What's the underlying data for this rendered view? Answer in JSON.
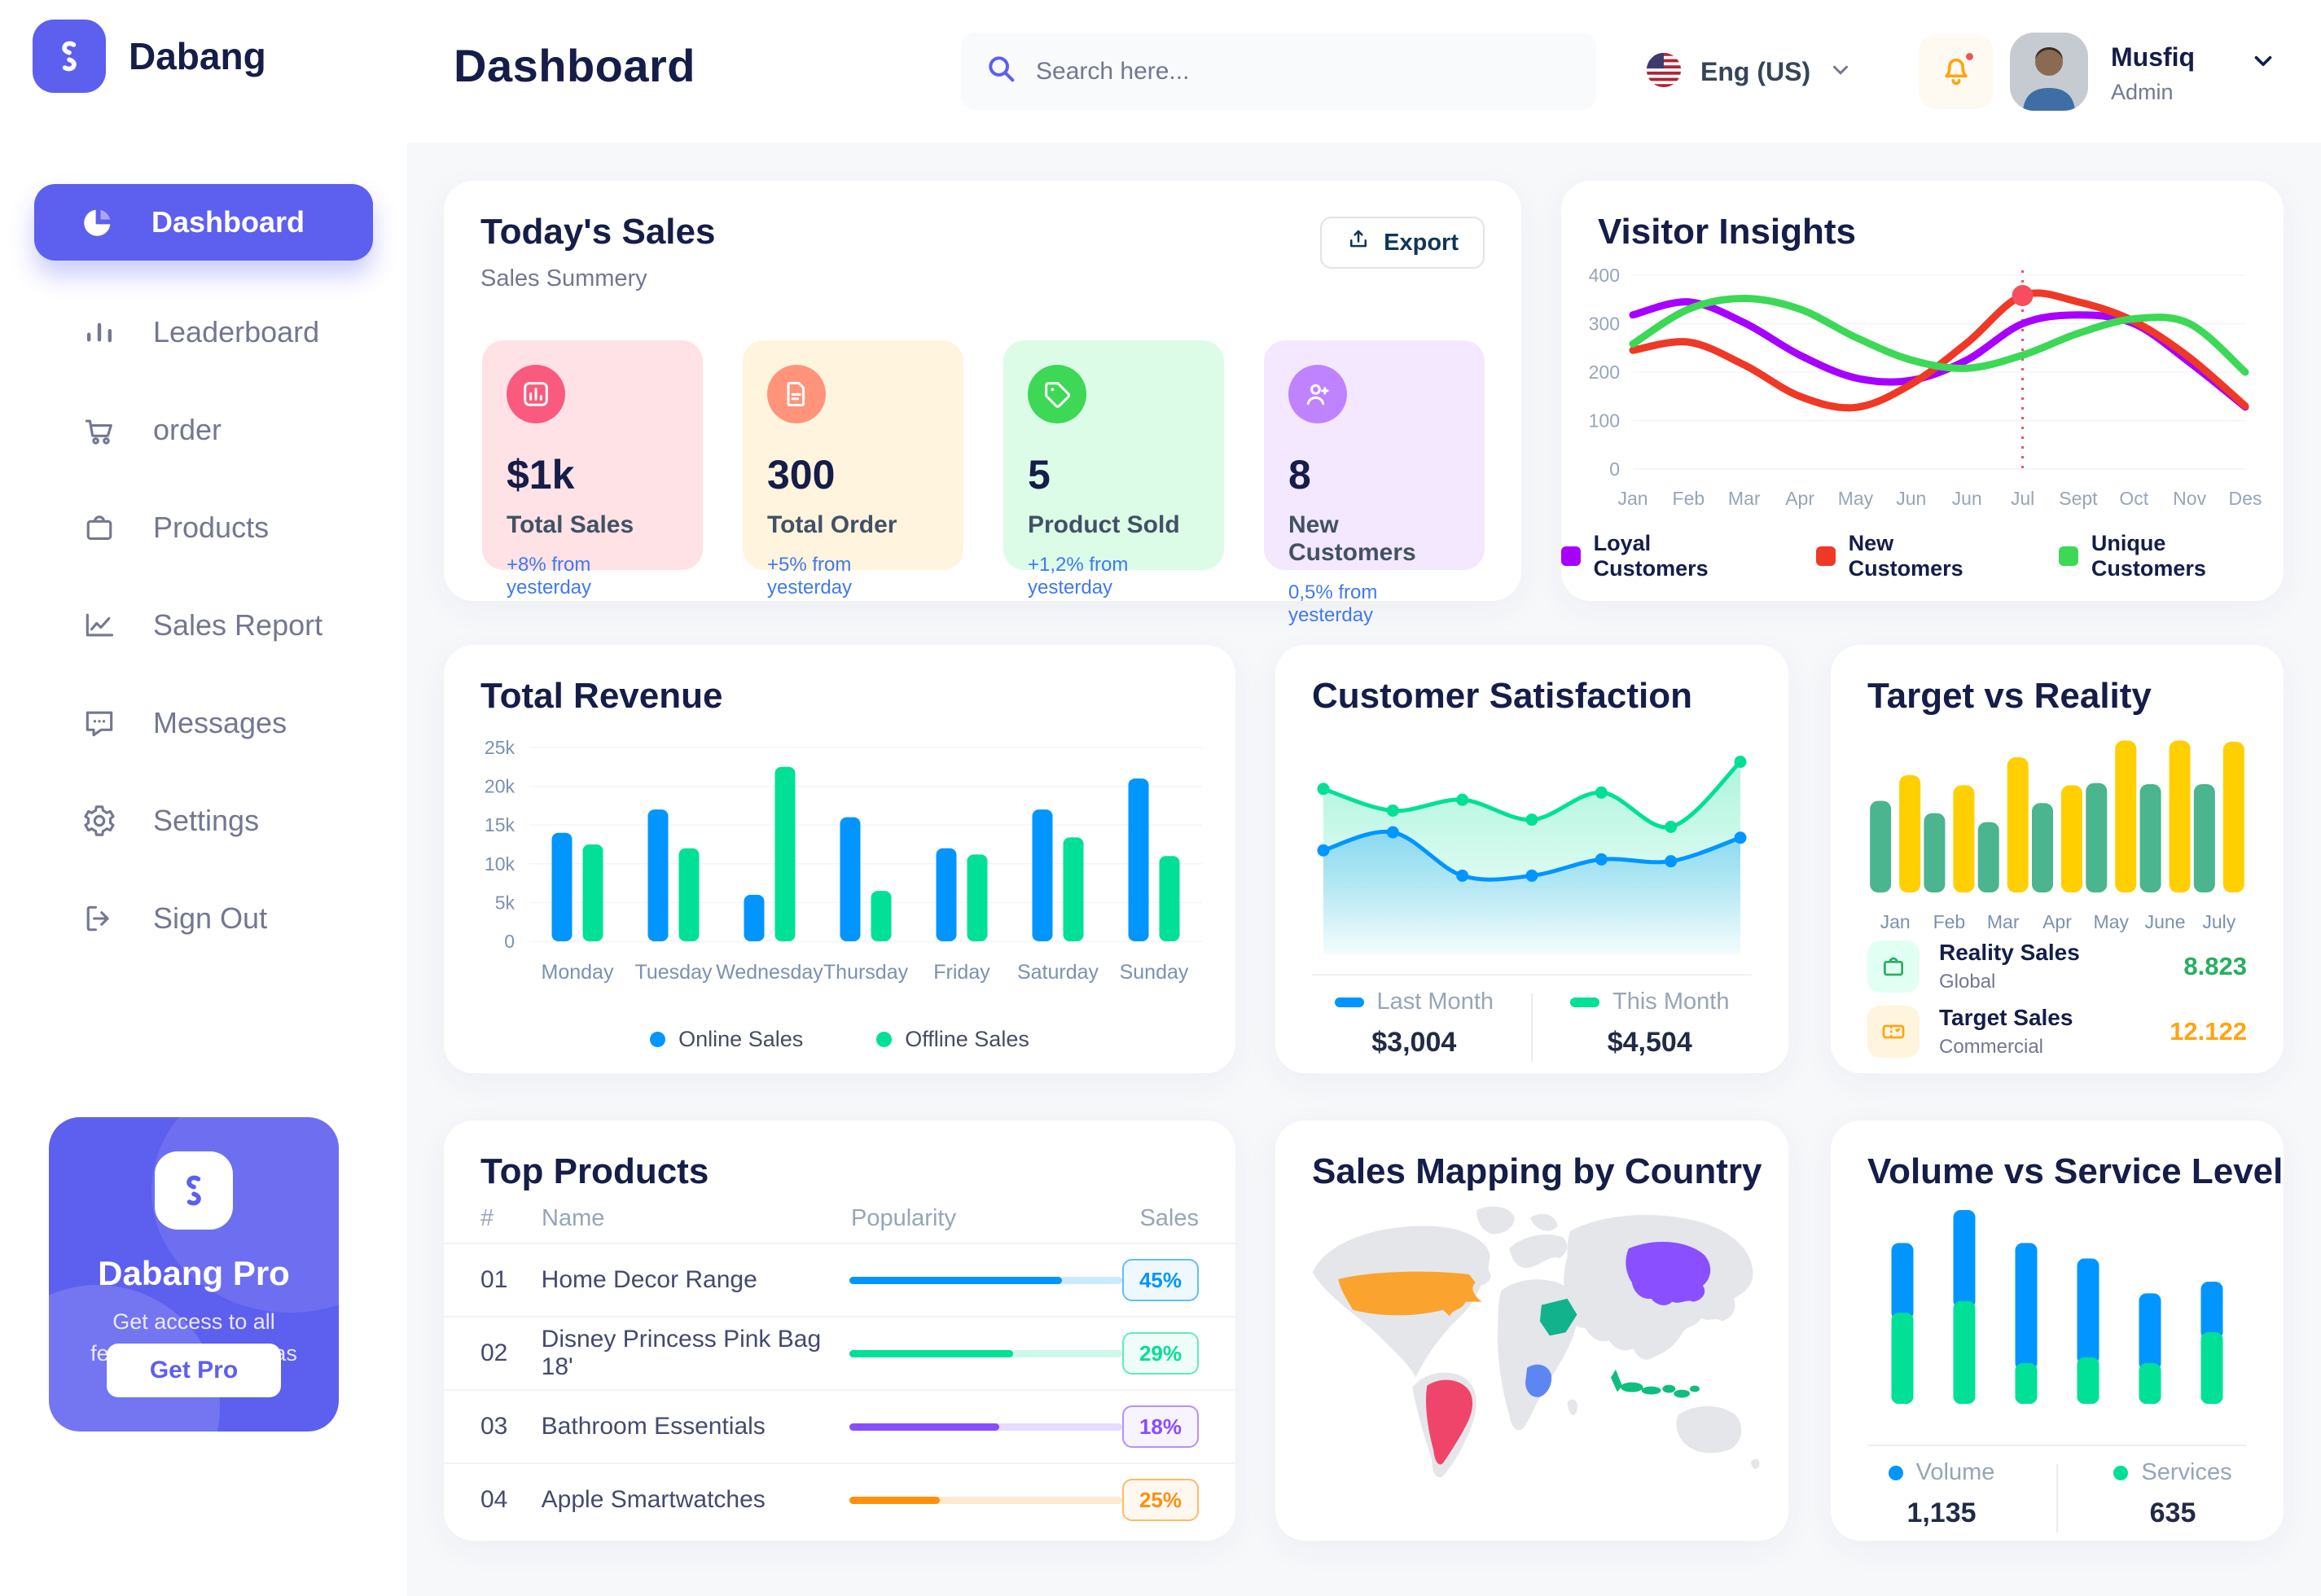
{
  "app": {
    "brand": "Dabang",
    "page_title": "Dashboard"
  },
  "header": {
    "search_placeholder": "Search here...",
    "language": "Eng (US)",
    "user": {
      "name": "Musfiq",
      "role": "Admin"
    }
  },
  "sidebar": {
    "items": [
      {
        "label": "Dashboard",
        "icon": "dashboard",
        "active": true
      },
      {
        "label": "Leaderboard",
        "icon": "leaderboard",
        "active": false
      },
      {
        "label": "order",
        "icon": "cart",
        "active": false
      },
      {
        "label": "Products",
        "icon": "bag",
        "active": false
      },
      {
        "label": "Sales Report",
        "icon": "sales",
        "active": false
      },
      {
        "label": "Messages",
        "icon": "messages",
        "active": false
      },
      {
        "label": "Settings",
        "icon": "settings",
        "active": false
      },
      {
        "label": "Sign Out",
        "icon": "signout",
        "active": false
      }
    ],
    "pro_card": {
      "title": "Dabang Pro",
      "subtitle": "Get access to all features on tetumbas",
      "button": "Get Pro"
    }
  },
  "todays_sales": {
    "title": "Today's Sales",
    "subtitle": "Sales Summery",
    "export_label": "Export",
    "stats": [
      {
        "value": "$1k",
        "label": "Total Sales",
        "change": "+8% from yesterday",
        "bg": "#FFE2E5",
        "circle": "#FA5A7D",
        "icon": "chart"
      },
      {
        "value": "300",
        "label": "Total Order",
        "change": "+5% from yesterday",
        "bg": "#FFF4DE",
        "circle": "#FF947A",
        "icon": "file"
      },
      {
        "value": "5",
        "label": "Product Sold",
        "change": "+1,2% from yesterday",
        "bg": "#DCFCE7",
        "circle": "#3CD856",
        "icon": "tag"
      },
      {
        "value": "8",
        "label": "New Customers",
        "change": "0,5% from yesterday",
        "bg": "#F3E8FF",
        "circle": "#BF83FF",
        "icon": "user"
      }
    ]
  },
  "chart_data": {
    "visitor_insights": {
      "type": "line",
      "title": "Visitor Insights",
      "x_labels": [
        "Jan",
        "Feb",
        "Mar",
        "Apr",
        "May",
        "Jun",
        "Jun",
        "Jul",
        "Sept",
        "Oct",
        "Nov",
        "Des"
      ],
      "y_ticks": [
        0,
        100,
        200,
        300,
        400
      ],
      "ylim": [
        0,
        400
      ],
      "grid": true,
      "legend_position": "bottom",
      "series": [
        {
          "name": "Loyal Customers",
          "color": "#A700FF",
          "values": [
            318,
            345,
            302,
            235,
            188,
            183,
            225,
            300,
            318,
            300,
            220,
            128
          ]
        },
        {
          "name": "New Customers",
          "color": "#EF3826",
          "values": [
            245,
            262,
            215,
            150,
            127,
            175,
            260,
            358,
            345,
            305,
            230,
            130
          ]
        },
        {
          "name": "Unique Customers",
          "color": "#3CD856",
          "values": [
            258,
            330,
            352,
            330,
            272,
            225,
            208,
            235,
            280,
            310,
            300,
            200
          ]
        }
      ],
      "marker": {
        "series": "New Customers",
        "x_index": 7,
        "value": 358
      }
    },
    "total_revenue": {
      "type": "bar",
      "title": "Total Revenue",
      "categories": [
        "Monday",
        "Tuesday",
        "Wednesday",
        "Thursday",
        "Friday",
        "Saturday",
        "Sunday"
      ],
      "y_tick_labels": [
        "0",
        "5k",
        "10k",
        "15k",
        "20k",
        "25k"
      ],
      "ylim": [
        0,
        25000
      ],
      "grid": true,
      "legend_position": "bottom",
      "series": [
        {
          "name": "Online Sales",
          "color": "#0095FF",
          "values": [
            14000,
            17000,
            6000,
            16000,
            12000,
            17000,
            21000
          ]
        },
        {
          "name": "Offline Sales",
          "color": "#00E096",
          "values": [
            12500,
            12000,
            22500,
            6500,
            11200,
            13400,
            11000
          ]
        }
      ]
    },
    "customer_satisfaction": {
      "type": "area",
      "title": "Customer Satisfaction",
      "ylim": [
        0,
        100
      ],
      "legend_position": "bottom",
      "series": [
        {
          "name": "Last Month",
          "color": "#0095FF",
          "total": "$3,004",
          "values": [
            44,
            54,
            30,
            30,
            39,
            38,
            51
          ]
        },
        {
          "name": "This Month",
          "color": "#00E096",
          "total": "$4,504",
          "values": [
            78,
            66,
            72,
            61,
            76,
            57,
            93
          ]
        }
      ]
    },
    "target_vs_reality": {
      "type": "bar",
      "title": "Target vs Reality",
      "categories": [
        "Jan",
        "Feb",
        "Mar",
        "Apr",
        "May",
        "June",
        "July"
      ],
      "ylim": [
        0,
        14
      ],
      "series": [
        {
          "name": "Reality Sales",
          "sublabel": "Global",
          "color": "#4AB58E",
          "value_color": "#27AE60",
          "iconbg": "#E2FFF3",
          "total": "8.823",
          "values": [
            8.2,
            7.1,
            6.3,
            8.0,
            9.8,
            9.7,
            9.7
          ]
        },
        {
          "name": "Target Sales",
          "sublabel": "Commercial",
          "color": "#FFCF00",
          "value_color": "#FFA412",
          "iconbg": "#FFF4DE",
          "total": "12.122",
          "values": [
            10.5,
            9.6,
            12.1,
            9.6,
            13.6,
            13.6,
            13.5
          ]
        }
      ]
    },
    "volume_vs_service": {
      "type": "stacked-bar",
      "title": "Volume vs Service Level",
      "legend_position": "bottom",
      "series": [
        {
          "name": "Volume",
          "color": "#0095FF",
          "total": "1,135",
          "values": [
            0.36,
            0.47,
            0.62,
            0.51,
            0.36,
            0.26
          ]
        },
        {
          "name": "Services",
          "color": "#00E096",
          "total": "635",
          "values": [
            0.47,
            0.53,
            0.21,
            0.24,
            0.21,
            0.37
          ]
        }
      ]
    }
  },
  "top_products": {
    "title": "Top Products",
    "columns": [
      "#",
      "Name",
      "Popularity",
      "Sales"
    ],
    "rows": [
      {
        "rank": "01",
        "name": "Home Decor Range",
        "fill": 0.78,
        "sales": "45%",
        "color": "#0095FF"
      },
      {
        "rank": "02",
        "name": "Disney Princess Pink Bag 18'",
        "fill": 0.6,
        "sales": "29%",
        "color": "#00E096"
      },
      {
        "rank": "03",
        "name": "Bathroom Essentials",
        "fill": 0.55,
        "sales": "18%",
        "color": "#884DFF"
      },
      {
        "rank": "04",
        "name": "Apple Smartwatches",
        "fill": 0.33,
        "sales": "25%",
        "color": "#FF8F0D"
      }
    ]
  },
  "sales_map": {
    "title": "Sales Mapping by Country",
    "countries": [
      {
        "name": "United States",
        "color": "#FBA32F"
      },
      {
        "name": "Brazil",
        "color": "#F0456B"
      },
      {
        "name": "Saudi Arabia",
        "color": "#12B28C"
      },
      {
        "name": "DR Congo",
        "color": "#5E86F2"
      },
      {
        "name": "China",
        "color": "#8A4FFF"
      },
      {
        "name": "Indonesia",
        "color": "#0FBE7C"
      }
    ]
  },
  "colors": {
    "primary": "#5D5FEF",
    "navy": "#151D48",
    "gray": "#737791",
    "light_gray": "#96A5B8",
    "blue_change": "#4079ED",
    "bg": "#F7F8FA"
  }
}
